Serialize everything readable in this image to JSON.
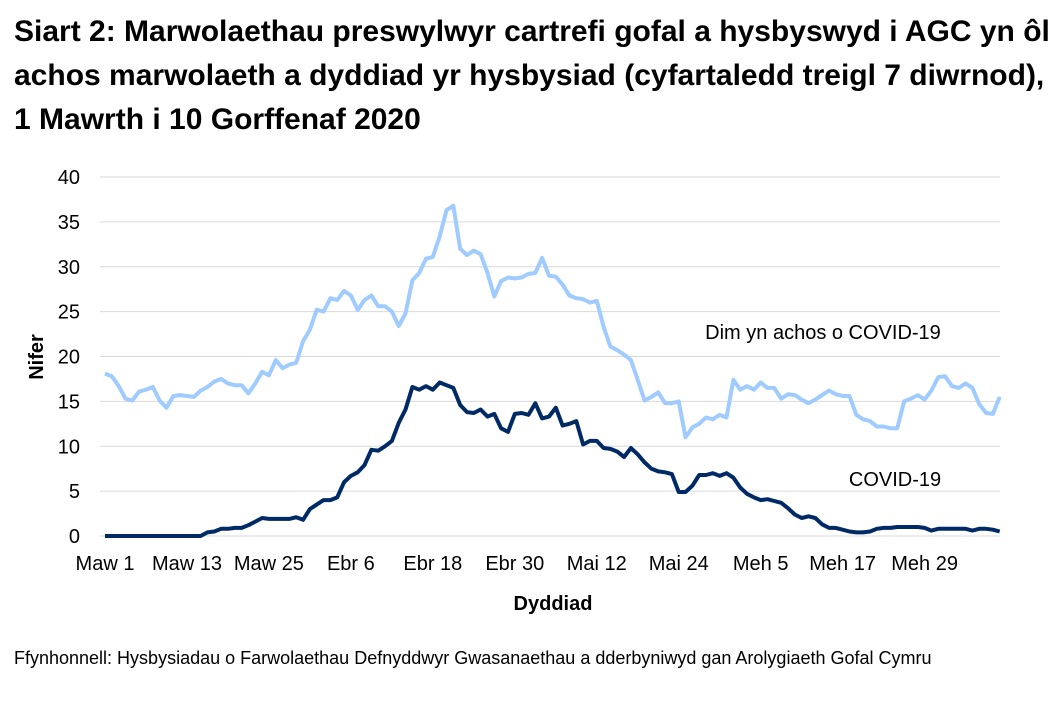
{
  "title": "Siart 2: Marwolaethau preswylwyr cartrefi gofal a hysbyswyd i AGC yn ôl achos marwolaeth a dyddiad yr hysbysiad (cyfartaledd treigl 7 diwrnod), 1 Mawrth i 10 Gorffenaf 2020",
  "source": "Ffynhonnell: Hysbysiadau o Farwolaethau Defnyddwyr Gwasanaethau a dderbyniwyd gan Arolygiaeth Gofal Cymru",
  "chart_data": {
    "type": "line",
    "xlabel": "Dyddiad",
    "ylabel": "Nifer",
    "x_start": "2020-03-01",
    "x_end": "2020-07-10",
    "x_tick_labels": [
      "Maw 1",
      "Maw 13",
      "Maw 25",
      "Ebr 6",
      "Ebr 18",
      "Ebr 30",
      "Mai 12",
      "Mai 24",
      "Meh 5",
      "Meh 17",
      "Meh 29"
    ],
    "y_ticks": [
      0,
      5,
      10,
      15,
      20,
      25,
      30,
      35,
      40
    ],
    "ylim": [
      0,
      40
    ],
    "grid": "horizontal",
    "series": [
      {
        "name": "Dim yn achos o COVID-19",
        "color": "#9fcbff",
        "values": [
          18.1,
          17.8,
          16.7,
          15.3,
          15.1,
          16.1,
          16.3,
          16.6,
          15.1,
          14.3,
          15.6,
          15.7,
          15.6,
          15.5,
          16.2,
          16.6,
          17.2,
          17.5,
          17.0,
          16.8,
          16.8,
          15.9,
          17.0,
          18.3,
          17.9,
          19.6,
          18.7,
          19.1,
          19.3,
          21.7,
          23.0,
          25.2,
          25.0,
          26.5,
          26.3,
          27.3,
          26.8,
          25.2,
          26.3,
          26.8,
          25.6,
          25.6,
          25.0,
          23.4,
          24.8,
          28.5,
          29.3,
          30.9,
          31.1,
          33.4,
          36.3,
          36.8,
          32.0,
          31.3,
          31.8,
          31.4,
          29.3,
          26.7,
          28.4,
          28.8,
          28.7,
          28.8,
          29.2,
          29.3,
          31.0,
          29.0,
          28.9,
          28.0,
          26.8,
          26.5,
          26.4,
          26.0,
          26.2,
          23.3,
          21.1,
          20.7,
          20.2,
          19.6,
          17.4,
          15.1,
          15.5,
          16.0,
          14.8,
          14.8,
          15.0,
          11.0,
          12.1,
          12.5,
          13.2,
          13.0,
          13.5,
          13.2,
          17.4,
          16.3,
          16.7,
          16.3,
          17.1,
          16.5,
          16.5,
          15.3,
          15.8,
          15.7,
          15.2,
          14.8,
          15.2,
          15.7,
          16.2,
          15.8,
          15.6,
          15.6,
          13.5,
          13.0,
          12.8,
          12.2,
          12.2,
          12.0,
          12.0,
          15.0,
          15.3,
          15.7,
          15.2,
          16.2,
          17.7,
          17.8,
          16.7,
          16.5,
          17.0,
          16.5,
          14.7,
          13.7,
          13.6,
          15.5
        ]
      },
      {
        "name": "COVID-19",
        "color": "#002a66",
        "values": [
          0,
          0,
          0,
          0,
          0,
          0,
          0,
          0,
          0,
          0,
          0,
          0,
          0,
          0,
          0,
          0.4,
          0.5,
          0.8,
          0.8,
          0.9,
          0.9,
          1.2,
          1.6,
          2.0,
          1.9,
          1.9,
          1.9,
          1.9,
          2.1,
          1.8,
          3.0,
          3.5,
          4.0,
          4.0,
          4.3,
          6.0,
          6.7,
          7.1,
          7.9,
          9.6,
          9.5,
          10.0,
          10.6,
          12.6,
          14.1,
          16.6,
          16.3,
          16.7,
          16.3,
          17.1,
          16.8,
          16.5,
          14.6,
          13.8,
          13.7,
          14.1,
          13.3,
          13.6,
          12.0,
          11.6,
          13.6,
          13.7,
          13.5,
          14.8,
          13.1,
          13.3,
          14.3,
          12.3,
          12.5,
          12.8,
          10.2,
          10.6,
          10.6,
          9.8,
          9.7,
          9.4,
          8.8,
          9.8,
          9.1,
          8.2,
          7.5,
          7.2,
          7.1,
          6.9,
          4.9,
          4.9,
          5.6,
          6.8,
          6.8,
          7.0,
          6.7,
          7.0,
          6.5,
          5.4,
          4.7,
          4.3,
          4.0,
          4.1,
          3.9,
          3.7,
          3.1,
          2.4,
          2.0,
          2.2,
          2.0,
          1.3,
          0.9,
          0.9,
          0.7,
          0.5,
          0.4,
          0.4,
          0.5,
          0.8,
          0.9,
          0.9,
          1.0,
          1.0,
          1.0,
          1.0,
          0.9,
          0.6,
          0.8,
          0.8,
          0.8,
          0.8,
          0.8,
          0.6,
          0.8,
          0.8,
          0.7,
          0.5
        ]
      }
    ]
  }
}
